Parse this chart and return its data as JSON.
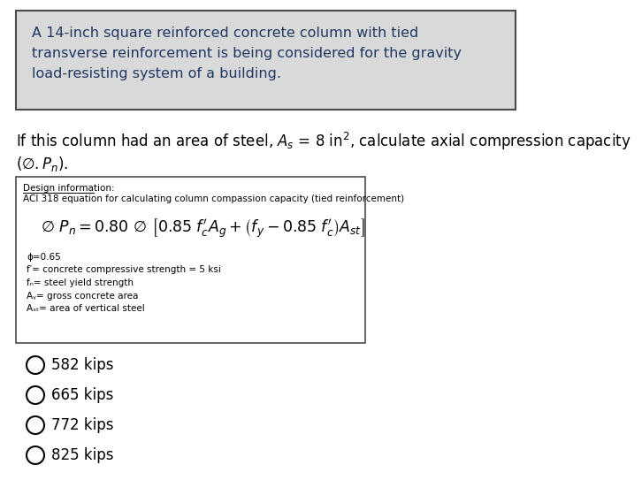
{
  "bg_color": "#ffffff",
  "top_box_bg": "#d9d9d9",
  "top_box_border": "#4a4a4a",
  "top_box_text": "A 14-inch square reinforced concrete column with tied\ntransverse reinforcement is being considered for the gravity\nload-resisting system of a building.",
  "top_box_text_color": "#1f3864",
  "question_text_color": "#000000",
  "design_box_border": "#4a4a4a",
  "design_box_bg": "#ffffff",
  "design_label": "Design information:",
  "design_subtitle": "ACI 318 equation for calculating column compassion capacity (tied reinforcement)",
  "design_notes": [
    "ϕ=0.65",
    "f′⁣= concrete compressive strength = 5 ksi",
    "fₙ= steel yield strength",
    "Aᵧ= gross concrete area",
    "Aₛₜ= area of vertical steel"
  ],
  "options": [
    "582 kips",
    "665 kips",
    "772 kips",
    "825 kips"
  ],
  "circle_color": "#000000"
}
